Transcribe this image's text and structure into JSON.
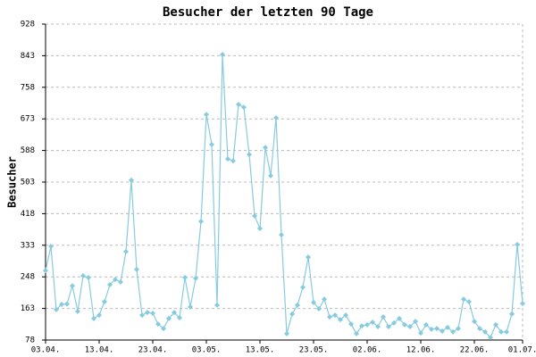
{
  "chart_data": {
    "type": "line",
    "title": "Besucher der letzten 90 Tage",
    "y_label": "Besucher",
    "categories": [
      "03.04.",
      null,
      null,
      null,
      null,
      null,
      null,
      null,
      null,
      null,
      "13.04.",
      null,
      null,
      null,
      null,
      null,
      null,
      null,
      null,
      null,
      "23.04.",
      null,
      null,
      null,
      null,
      null,
      null,
      null,
      null,
      null,
      "03.05.",
      null,
      null,
      null,
      null,
      null,
      null,
      null,
      null,
      null,
      "13.05.",
      null,
      null,
      null,
      null,
      null,
      null,
      null,
      null,
      null,
      "23.05.",
      null,
      null,
      null,
      null,
      null,
      null,
      null,
      null,
      null,
      "02.06.",
      null,
      null,
      null,
      null,
      null,
      null,
      null,
      null,
      null,
      "12.06.",
      null,
      null,
      null,
      null,
      null,
      null,
      null,
      null,
      null,
      "22.06.",
      null,
      null,
      null,
      null,
      null,
      null,
      null,
      null,
      "01.07."
    ],
    "series": [
      {
        "name": "Besucher",
        "color": "#87cbe0",
        "values": [
          265,
          330,
          160,
          174,
          175,
          224,
          155,
          251,
          246,
          136,
          145,
          181,
          227,
          241,
          234,
          316,
          508,
          268,
          145,
          152,
          150,
          121,
          109,
          136,
          152,
          138,
          246,
          167,
          244,
          397,
          685,
          604,
          172,
          846,
          565,
          560,
          712,
          704,
          577,
          412,
          378,
          596,
          520,
          676,
          361,
          95,
          148,
          172,
          220,
          301,
          179,
          162,
          188,
          140,
          145,
          133,
          145,
          121,
          95,
          116,
          119,
          126,
          114,
          140,
          114,
          124,
          136,
          119,
          114,
          128,
          97,
          119,
          107,
          109,
          102,
          112,
          100,
          109,
          188,
          181,
          128,
          109,
          100,
          85,
          119,
          100,
          100,
          148,
          335,
          176
        ]
      }
    ],
    "ylim": [
      78,
      928
    ],
    "yticks": [
      78,
      163,
      248,
      333,
      418,
      503,
      588,
      673,
      758,
      843,
      928
    ],
    "grid": true
  }
}
